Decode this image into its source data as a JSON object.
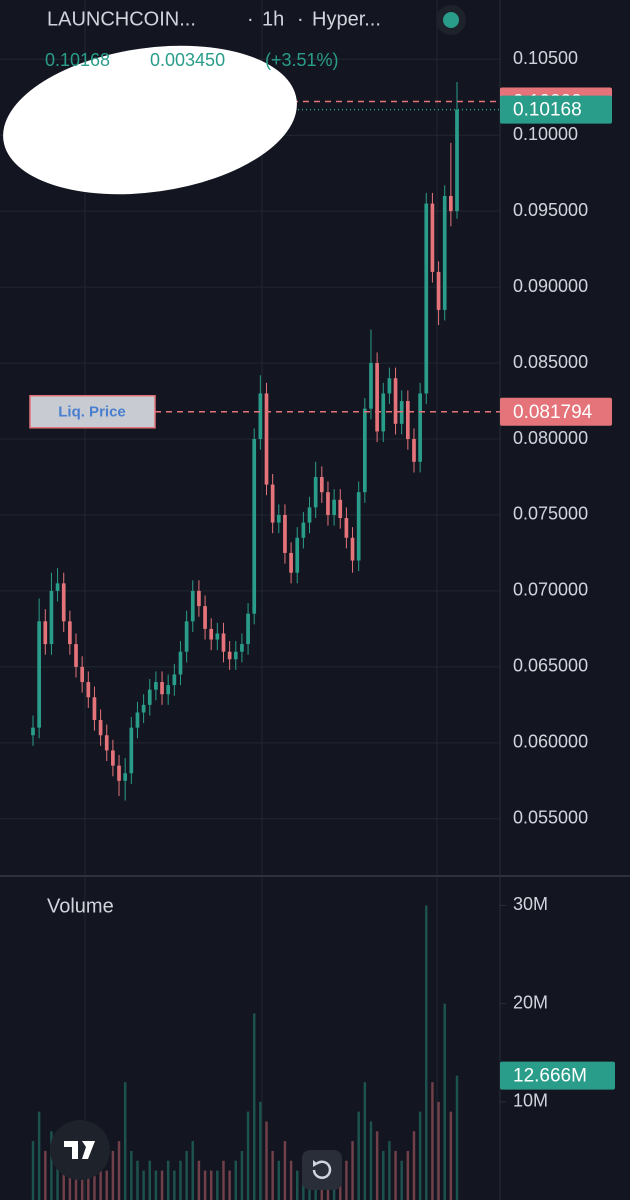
{
  "header": {
    "symbol": "LAUNCHCOIN...",
    "interval": "1h",
    "exchange": "Hyper...",
    "last": "0.10168",
    "change": "0.003450",
    "change_pct": "(+3.51%)"
  },
  "chart_data": {
    "type": "candlestick",
    "up_color": "#2a9d8a",
    "down_color": "#e5737a",
    "ylim": [
      0.0513,
      0.1089
    ],
    "yticks": [
      {
        "value": 0.105,
        "label": "0.10500"
      },
      {
        "value": 0.1,
        "label": "0.10000"
      },
      {
        "value": 0.095,
        "label": "0.095000"
      },
      {
        "value": 0.09,
        "label": "0.090000"
      },
      {
        "value": 0.085,
        "label": "0.085000"
      },
      {
        "value": 0.08,
        "label": "0.080000"
      },
      {
        "value": 0.075,
        "label": "0.075000"
      },
      {
        "value": 0.07,
        "label": "0.070000"
      },
      {
        "value": 0.065,
        "label": "0.065000"
      },
      {
        "value": 0.06,
        "label": "0.060000"
      },
      {
        "value": 0.055,
        "label": "0.055000"
      }
    ],
    "grid": true,
    "open": [
      0.0605,
      0.061,
      0.068,
      0.0665,
      0.07,
      0.0705,
      0.068,
      0.0665,
      0.065,
      0.064,
      0.063,
      0.0615,
      0.0605,
      0.0595,
      0.0585,
      0.0575,
      0.058,
      0.061,
      0.062,
      0.0625,
      0.0635,
      0.064,
      0.0632,
      0.0638,
      0.0645,
      0.066,
      0.068,
      0.07,
      0.069,
      0.0675,
      0.0668,
      0.0672,
      0.066,
      0.0655,
      0.066,
      0.0665,
      0.0685,
      0.08,
      0.083,
      0.077,
      0.0745,
      0.075,
      0.0725,
      0.0712,
      0.0735,
      0.0745,
      0.0755,
      0.0775,
      0.0765,
      0.075,
      0.076,
      0.0748,
      0.0735,
      0.072,
      0.0765,
      0.082,
      0.085,
      0.0805,
      0.083,
      0.084,
      0.081,
      0.0825,
      0.08,
      0.0785,
      0.083,
      0.0955,
      0.091,
      0.0885,
      0.096,
      0.095
    ],
    "high": [
      0.0618,
      0.0695,
      0.0688,
      0.0712,
      0.0715,
      0.0712,
      0.0687,
      0.0672,
      0.0657,
      0.0647,
      0.0637,
      0.0622,
      0.0612,
      0.0602,
      0.0592,
      0.059,
      0.0617,
      0.0627,
      0.0632,
      0.0642,
      0.0647,
      0.0647,
      0.0645,
      0.0652,
      0.0667,
      0.0687,
      0.0707,
      0.0707,
      0.0697,
      0.0682,
      0.0679,
      0.0679,
      0.0667,
      0.0667,
      0.0672,
      0.0692,
      0.0807,
      0.0842,
      0.0837,
      0.0777,
      0.0757,
      0.0757,
      0.0732,
      0.0742,
      0.0752,
      0.0762,
      0.0785,
      0.0782,
      0.0772,
      0.0767,
      0.0767,
      0.0755,
      0.0742,
      0.0772,
      0.0827,
      0.0872,
      0.0857,
      0.0837,
      0.0847,
      0.0847,
      0.0832,
      0.0832,
      0.0807,
      0.0837,
      0.0962,
      0.0962,
      0.0917,
      0.0967,
      0.0995,
      0.1035
    ],
    "low": [
      0.0598,
      0.0603,
      0.0658,
      0.0658,
      0.0693,
      0.0673,
      0.0658,
      0.0643,
      0.0633,
      0.0623,
      0.0608,
      0.0598,
      0.0588,
      0.0578,
      0.0565,
      0.0562,
      0.0573,
      0.0603,
      0.0613,
      0.0618,
      0.0628,
      0.0625,
      0.0625,
      0.0631,
      0.0638,
      0.0653,
      0.0673,
      0.0683,
      0.0668,
      0.0661,
      0.0661,
      0.0653,
      0.0648,
      0.0648,
      0.0653,
      0.0658,
      0.0678,
      0.0793,
      0.0763,
      0.0738,
      0.0738,
      0.0718,
      0.0705,
      0.0705,
      0.0728,
      0.0738,
      0.0748,
      0.0758,
      0.0743,
      0.0743,
      0.0741,
      0.0728,
      0.0712,
      0.0713,
      0.0758,
      0.0813,
      0.0798,
      0.0798,
      0.0823,
      0.0803,
      0.0803,
      0.0793,
      0.0778,
      0.0778,
      0.0823,
      0.0903,
      0.0875,
      0.0878,
      0.094,
      0.0945
    ],
    "close": [
      0.061,
      0.068,
      0.0665,
      0.07,
      0.0705,
      0.068,
      0.0665,
      0.065,
      0.064,
      0.063,
      0.0615,
      0.0605,
      0.0595,
      0.0585,
      0.0575,
      0.058,
      0.061,
      0.062,
      0.0625,
      0.0635,
      0.064,
      0.0632,
      0.0638,
      0.0645,
      0.066,
      0.068,
      0.07,
      0.069,
      0.0675,
      0.0668,
      0.0672,
      0.066,
      0.0655,
      0.066,
      0.0665,
      0.0685,
      0.08,
      0.083,
      0.077,
      0.0745,
      0.075,
      0.0725,
      0.0712,
      0.0735,
      0.0745,
      0.0755,
      0.0775,
      0.0765,
      0.075,
      0.076,
      0.0748,
      0.0735,
      0.072,
      0.0765,
      0.082,
      0.085,
      0.0805,
      0.083,
      0.084,
      0.081,
      0.0825,
      0.08,
      0.0785,
      0.083,
      0.0955,
      0.091,
      0.0885,
      0.096,
      0.095,
      0.10168
    ],
    "price_lines": [
      {
        "value": 0.10222,
        "color": "#e5737a",
        "style": "dashed"
      },
      {
        "value": 0.10168,
        "color": "#2a9d8a",
        "style": "dotted"
      },
      {
        "value": 0.081794,
        "color": "#e5737a",
        "style": "dashed",
        "label": "Liq. Price"
      }
    ],
    "volume": {
      "title": "Volume",
      "ylim": [
        0,
        32.9
      ],
      "yticks": [
        {
          "value": 30,
          "label": "30M"
        },
        {
          "value": 20,
          "label": "20M"
        },
        {
          "value": 10,
          "label": "10M"
        }
      ],
      "values": [
        6,
        9,
        5,
        7,
        4,
        5,
        4,
        6,
        5,
        4,
        5,
        4,
        3,
        5,
        6,
        12,
        5,
        4,
        3,
        4,
        3,
        3,
        4,
        3,
        4,
        5,
        6,
        4,
        3,
        3,
        3,
        4,
        3,
        4,
        5,
        9,
        19,
        10,
        8,
        5,
        4,
        6,
        4,
        3,
        4,
        4,
        5,
        3,
        4,
        3,
        3,
        4,
        6,
        9,
        12,
        8,
        7,
        5,
        6,
        5,
        4,
        5,
        7,
        9,
        30,
        12,
        10,
        20,
        9,
        12.666
      ],
      "current": {
        "value": 12.666,
        "label": "12.666M"
      }
    }
  }
}
